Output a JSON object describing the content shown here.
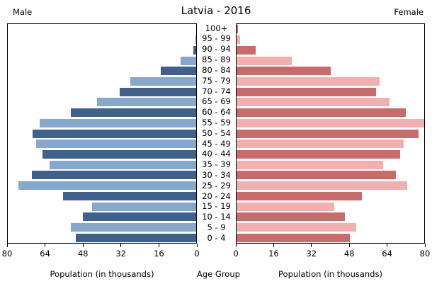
{
  "header": {
    "male_label": "Male",
    "title": "Latvia - 2016",
    "female_label": "Female"
  },
  "footer": {
    "left_axis_label": "Population (in thousands)",
    "center_axis_label": "Age Group",
    "right_axis_label": "Population (in thousands)"
  },
  "chart_data": {
    "type": "bar",
    "subtype": "population-pyramid",
    "title": "Latvia - 2016",
    "age_groups_top_to_bottom": [
      "100+",
      "95 - 99",
      "90 - 94",
      "85 - 89",
      "80 - 84",
      "75 - 79",
      "70 - 74",
      "65 - 69",
      "60 - 64",
      "55 - 59",
      "50 - 54",
      "45 - 49",
      "40 - 44",
      "35 - 39",
      "30 - 34",
      "25 - 29",
      "20 - 24",
      "15 - 19",
      "10 - 14",
      "5 - 9",
      "0 - 4"
    ],
    "series": [
      {
        "name": "Male",
        "side": "left",
        "values_top_to_bottom": [
          0.1,
          0.4,
          1.2,
          6.7,
          15,
          28,
          32.5,
          42,
          53.2,
          66.6,
          69.6,
          67.9,
          65.3,
          62.2,
          69.8,
          75.5,
          56.5,
          44.3,
          48,
          53.1,
          51
        ]
      },
      {
        "name": "Female",
        "side": "right",
        "values_top_to_bottom": [
          0.6,
          1.5,
          8,
          23.5,
          40,
          61,
          59.5,
          65.2,
          72.1,
          80.5,
          77.6,
          71.2,
          69.8,
          62.5,
          67.9,
          72.7,
          53.4,
          41.8,
          46.1,
          51,
          48.4
        ]
      }
    ],
    "xlim": [
      0,
      80
    ],
    "male_axis_ticks": [
      80,
      64,
      48,
      32,
      16,
      0
    ],
    "female_axis_ticks": [
      0,
      16,
      32,
      48,
      64,
      80
    ],
    "xlabel": "Population (in thousands)",
    "center_label": "Age Group",
    "grid": false,
    "legend": "none",
    "colors": {
      "male_dark": "#40608E",
      "male_light": "#86A7CE",
      "female_dark": "#C96B6B",
      "female_light": "#F2AFAF",
      "axis": "#000000",
      "background": "#FFFFFF"
    }
  }
}
